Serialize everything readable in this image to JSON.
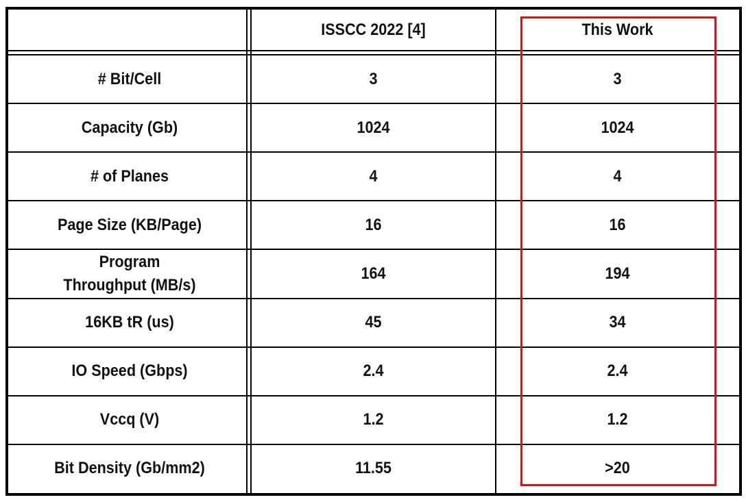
{
  "table": {
    "columns": [
      "ISSCC 2022 [4]",
      "This Work"
    ],
    "rows": [
      [
        "# Bit/Cell",
        "3",
        "3"
      ],
      [
        "Capacity (Gb)",
        "1024",
        "1024"
      ],
      [
        "# of Planes",
        "4",
        "4"
      ],
      [
        "Page Size (KB/Page)",
        "16",
        "16"
      ],
      [
        "Program\nThroughput (MB/s)",
        "164",
        "194"
      ],
      [
        "16KB tR (us)",
        "45",
        "34"
      ],
      [
        "IO Speed (Gbps)",
        "2.4",
        "2.4"
      ],
      [
        "Vccq (V)",
        "1.2",
        "1.2"
      ],
      [
        "Bit Density (Gb/mm2)",
        "11.55",
        ">20"
      ]
    ]
  }
}
